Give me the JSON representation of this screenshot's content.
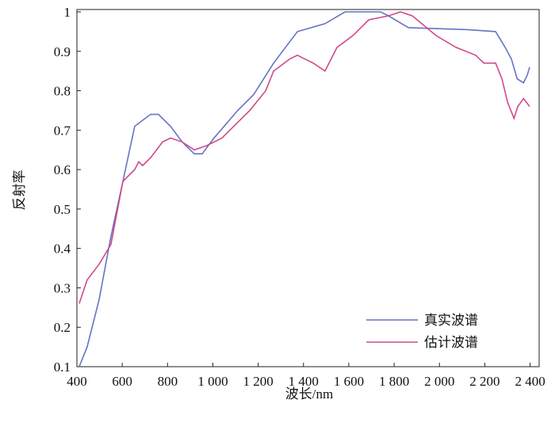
{
  "chart_data": {
    "type": "line",
    "x_label": "波长/nm",
    "y_label": "反射率",
    "xlim": [
      400,
      2440
    ],
    "ylim": [
      0.1,
      1
    ],
    "xticks": [
      400,
      600,
      800,
      {
        "value": 1000,
        "label": "1 000"
      },
      {
        "value": 1200,
        "label": "1 200"
      },
      {
        "value": 1400,
        "label": "1 400"
      },
      {
        "value": 1600,
        "label": "1 600"
      },
      {
        "value": 1800,
        "label": "1 800"
      },
      {
        "value": 2000,
        "label": "2 000"
      },
      {
        "value": 2200,
        "label": "2 200"
      },
      {
        "value": 2400,
        "label": "2 400"
      }
    ],
    "yticks": [
      0.1,
      0.2,
      0.3,
      0.4,
      0.5,
      0.6,
      0.7,
      0.8,
      0.9,
      1
    ],
    "legend": "lower right",
    "series": [
      {
        "name": "真实波谱",
        "color": "#6673c4",
        "x": [
          410,
          445,
          498,
          550,
          603,
          655,
          725,
          760,
          813,
          865,
          918,
          953,
          1005,
          1110,
          1180,
          1268,
          1373,
          1495,
          1583,
          1740,
          1775,
          1863,
          2125,
          2248,
          2290,
          2318,
          2343,
          2371,
          2388,
          2398
        ],
        "values": [
          0.1,
          0.15,
          0.27,
          0.43,
          0.57,
          0.71,
          0.74,
          0.74,
          0.71,
          0.67,
          0.64,
          0.64,
          0.68,
          0.75,
          0.79,
          0.87,
          0.95,
          0.97,
          1.0,
          1.0,
          0.99,
          0.96,
          0.955,
          0.95,
          0.91,
          0.88,
          0.83,
          0.82,
          0.84,
          0.86
        ]
      },
      {
        "name": "估计波谱",
        "color": "#d04a8a",
        "x": [
          410,
          445,
          498,
          550,
          603,
          655,
          673,
          690,
          725,
          778,
          813,
          865,
          918,
          970,
          1040,
          1110,
          1163,
          1233,
          1268,
          1338,
          1373,
          1443,
          1495,
          1548,
          1618,
          1688,
          1775,
          1828,
          1880,
          1985,
          2073,
          2160,
          2196,
          2248,
          2276,
          2301,
          2329,
          2346,
          2371,
          2398
        ],
        "values": [
          0.26,
          0.32,
          0.36,
          0.41,
          0.57,
          0.6,
          0.62,
          0.61,
          0.63,
          0.67,
          0.68,
          0.67,
          0.65,
          0.66,
          0.68,
          0.72,
          0.75,
          0.8,
          0.85,
          0.88,
          0.89,
          0.87,
          0.85,
          0.91,
          0.94,
          0.98,
          0.99,
          1.0,
          0.99,
          0.94,
          0.91,
          0.89,
          0.87,
          0.87,
          0.83,
          0.77,
          0.73,
          0.76,
          0.78,
          0.76
        ]
      }
    ]
  }
}
